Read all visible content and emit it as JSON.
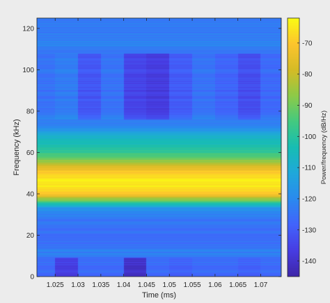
{
  "chart_data": {
    "type": "heatmap",
    "title": "",
    "xlabel": "Time (ms)",
    "ylabel": "Frequency (kHz)",
    "colorbar_label": "Power/frequency (dB/Hz)",
    "colormap": "parula",
    "xlim": [
      1.021,
      1.0745
    ],
    "ylim": [
      0,
      125
    ],
    "clim": [
      -145,
      -62
    ],
    "x_ticks": [
      1.025,
      1.03,
      1.035,
      1.04,
      1.045,
      1.05,
      1.055,
      1.06,
      1.065,
      1.07
    ],
    "x_tick_labels": [
      "1.025",
      "1.03",
      "1.035",
      "1.04",
      "1.045",
      "1.05",
      "1.055",
      "1.06",
      "1.065",
      "1.07"
    ],
    "y_ticks": [
      0,
      20,
      40,
      60,
      80,
      100,
      120
    ],
    "y_tick_labels": [
      "0",
      "20",
      "40",
      "60",
      "80",
      "100",
      "120"
    ],
    "colorbar_ticks": [
      -140,
      -130,
      -120,
      -110,
      -100,
      -90,
      -80,
      -70
    ],
    "colorbar_tick_labels": [
      "-140",
      "-130",
      "-120",
      "-110",
      "-100",
      "-90",
      "-80",
      "-70"
    ],
    "time_bins": [
      1.0225,
      1.0275,
      1.0325,
      1.0375,
      1.0425,
      1.0475,
      1.0525,
      1.0575,
      1.0625,
      1.0675,
      1.0725
    ],
    "frequency_profile": [
      {
        "f": 0,
        "p": -126
      },
      {
        "f": 8,
        "p": -126
      },
      {
        "f": 12,
        "p": -122
      },
      {
        "f": 18,
        "p": -126
      },
      {
        "f": 28,
        "p": -124
      },
      {
        "f": 33,
        "p": -118
      },
      {
        "f": 35,
        "p": -104
      },
      {
        "f": 37,
        "p": -88
      },
      {
        "f": 39,
        "p": -76
      },
      {
        "f": 41,
        "p": -68
      },
      {
        "f": 44,
        "p": -64
      },
      {
        "f": 47,
        "p": -64
      },
      {
        "f": 50,
        "p": -68
      },
      {
        "f": 52,
        "p": -74
      },
      {
        "f": 54,
        "p": -80
      },
      {
        "f": 56,
        "p": -86
      },
      {
        "f": 58,
        "p": -93
      },
      {
        "f": 61,
        "p": -100
      },
      {
        "f": 64,
        "p": -104
      },
      {
        "f": 67,
        "p": -108
      },
      {
        "f": 69,
        "p": -112
      },
      {
        "f": 72,
        "p": -120
      },
      {
        "f": 80,
        "p": -124
      },
      {
        "f": 90,
        "p": -125
      },
      {
        "f": 100,
        "p": -125
      },
      {
        "f": 110,
        "p": -124
      },
      {
        "f": 112,
        "p": -120
      },
      {
        "f": 115,
        "p": -123
      },
      {
        "f": 125,
        "p": -123
      }
    ],
    "column_offsets": [
      0,
      2,
      -6,
      0,
      -10,
      -12,
      -5,
      0,
      -3,
      -8,
      -2
    ],
    "column_offset_band_khz": [
      76,
      108
    ],
    "low_band_offsets": [
      0,
      -10,
      0,
      0,
      -14,
      0,
      -2,
      0,
      0,
      -2,
      0
    ],
    "low_band_khz": [
      0,
      9
    ]
  }
}
